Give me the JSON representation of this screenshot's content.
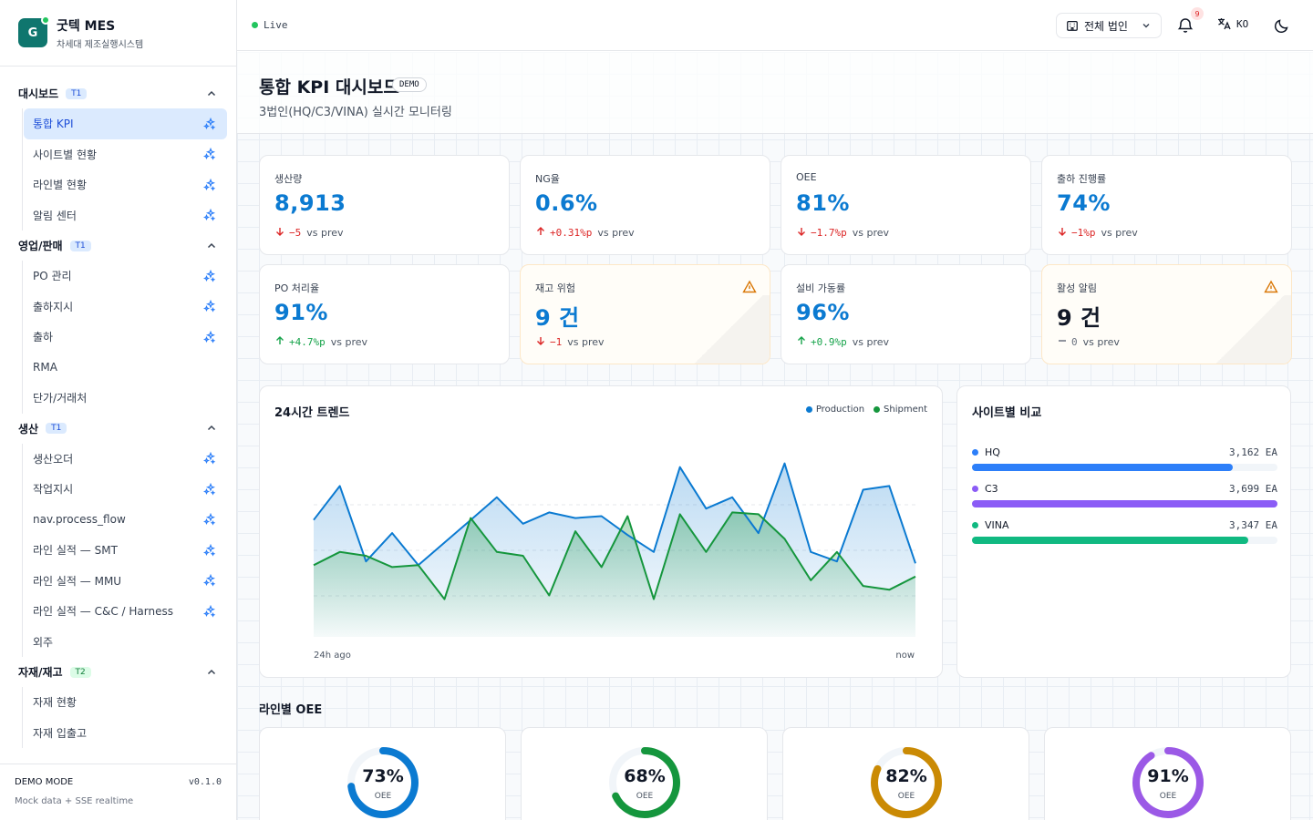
{
  "brand": {
    "name": "굿텍 MES",
    "subtitle": "차세대 제조실행시스템",
    "logo_letter": "G"
  },
  "nav": {
    "groups": [
      {
        "label": "대시보드",
        "tier": "T1",
        "items": [
          {
            "label": "통합 KPI",
            "active": true,
            "spark": true
          },
          {
            "label": "사이트별 현황",
            "spark": true
          },
          {
            "label": "라인별 현황",
            "spark": true
          },
          {
            "label": "알림 센터",
            "spark": true
          }
        ]
      },
      {
        "label": "영업/판매",
        "tier": "T1",
        "items": [
          {
            "label": "PO 관리",
            "spark": true
          },
          {
            "label": "출하지시",
            "spark": true
          },
          {
            "label": "출하",
            "spark": true
          },
          {
            "label": "RMA",
            "spark": false
          },
          {
            "label": "단가/거래처",
            "spark": false
          }
        ]
      },
      {
        "label": "생산",
        "tier": "T1",
        "items": [
          {
            "label": "생산오더",
            "spark": true
          },
          {
            "label": "작업지시",
            "spark": true
          },
          {
            "label": "nav.process_flow",
            "spark": true
          },
          {
            "label": "라인 실적 — SMT",
            "spark": true
          },
          {
            "label": "라인 실적 — MMU",
            "spark": true
          },
          {
            "label": "라인 실적 — C&C / Harness",
            "spark": true
          },
          {
            "label": "외주",
            "spark": false
          }
        ]
      },
      {
        "label": "자재/재고",
        "tier": "T2",
        "items": [
          {
            "label": "자재 현황",
            "spark": false
          },
          {
            "label": "자재 입출고",
            "spark": false
          }
        ]
      }
    ]
  },
  "footer": {
    "mode": "DEMO MODE",
    "version": "v0.1.0",
    "note": "Mock data + SSE realtime"
  },
  "header": {
    "live": "Live",
    "corp_selector": "전체 법인",
    "notifications": "9",
    "lang": "KO"
  },
  "page": {
    "title": "통합 KPI 대시보드",
    "tag": "DEMO",
    "subtitle": "3법인(HQ/C3/VINA) 실시간 모니터링"
  },
  "kpis": [
    {
      "label": "생산량",
      "value": "8,913",
      "change": "−5",
      "dir": "down",
      "vs": "vs prev"
    },
    {
      "label": "NG율",
      "value": "0.6%",
      "change": "+0.31%p",
      "dir": "up-bad",
      "vs": "vs prev"
    },
    {
      "label": "OEE",
      "value": "81%",
      "change": "−1.7%p",
      "dir": "down",
      "vs": "vs prev"
    },
    {
      "label": "출하 진행률",
      "value": "74%",
      "change": "−1%p",
      "dir": "down",
      "vs": "vs prev"
    },
    {
      "label": "PO 처리율",
      "value": "91%",
      "change": "+4.7%p",
      "dir": "up",
      "vs": "vs prev"
    },
    {
      "label": "재고 위험",
      "value": "9 건",
      "change": "−1",
      "dir": "down",
      "vs": "vs prev",
      "warning": true
    },
    {
      "label": "설비 가동률",
      "value": "96%",
      "change": "+0.9%p",
      "dir": "up",
      "vs": "vs prev"
    },
    {
      "label": "활성 알림",
      "value": "9 건",
      "change": "0",
      "dir": "flat",
      "vs": "vs prev",
      "warning": true
    }
  ],
  "trend": {
    "title": "24시간 트렌드",
    "x_start_label": "24h ago",
    "x_end_label": "now",
    "chart_data": {
      "type": "area",
      "series": [
        {
          "name": "Production",
          "color": "#0b7ad1",
          "values": [
            62,
            80,
            40,
            55,
            38,
            50,
            62,
            74,
            60,
            66,
            63,
            64,
            54,
            45,
            90,
            68,
            74,
            55,
            92,
            45,
            40,
            78,
            80,
            39
          ]
        },
        {
          "name": "Shipment",
          "color": "#15963d",
          "values": [
            38,
            45,
            43,
            37,
            38,
            20,
            63,
            45,
            43,
            22,
            56,
            37,
            64,
            20,
            65,
            45,
            66,
            65,
            52,
            30,
            45,
            27,
            25,
            32
          ]
        }
      ],
      "ylim": [
        0,
        100
      ]
    }
  },
  "sites": {
    "title": "사이트별 비교",
    "unit": "EA",
    "rows": [
      {
        "name": "HQ",
        "value": "3,162 EA",
        "fraction": 0.855,
        "color": "#2d7ff9"
      },
      {
        "name": "C3",
        "value": "3,699 EA",
        "fraction": 1.0,
        "color": "#8b5cf6"
      },
      {
        "name": "VINA",
        "value": "3,347 EA",
        "fraction": 0.905,
        "color": "#10b981"
      }
    ]
  },
  "line_oee": {
    "title": "라인별 OEE",
    "cards": [
      {
        "value": "73%",
        "pct": 73,
        "label": "OEE",
        "color": "#0b7ad1"
      },
      {
        "value": "68%",
        "pct": 68,
        "label": "OEE",
        "color": "#15963d"
      },
      {
        "value": "82%",
        "pct": 82,
        "label": "OEE",
        "color": "#ca8a04"
      },
      {
        "value": "91%",
        "pct": 91,
        "label": "OEE",
        "color": "#9b59e6"
      }
    ]
  }
}
